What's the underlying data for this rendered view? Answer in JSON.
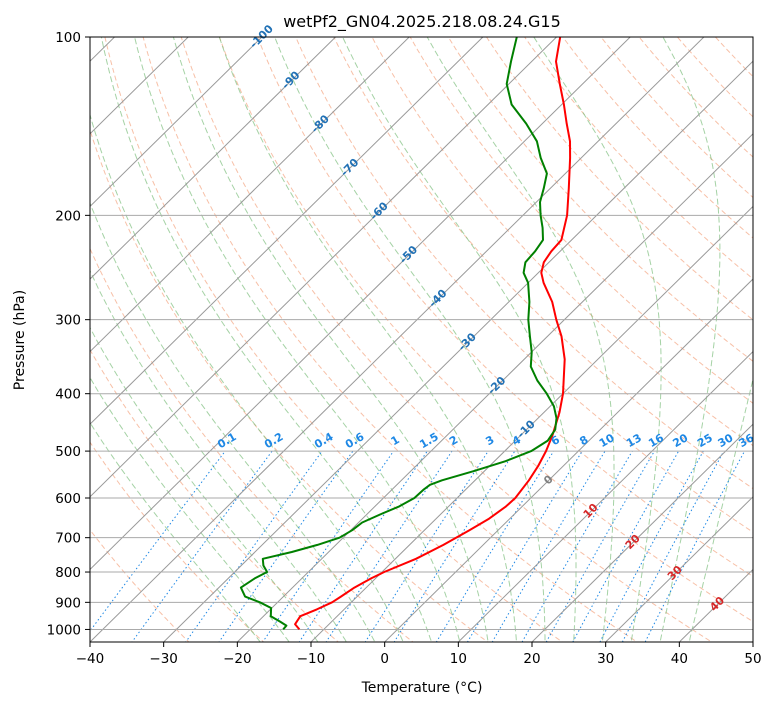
{
  "chart_data": {
    "type": "line",
    "subtype": "skew-T log-p diagram",
    "title": "wetPf2_GN04.2025.218.08.24.G15",
    "xlabel": "Temperature (°C)",
    "ylabel": "Pressure (hPa)",
    "xlim": [
      -40,
      50
    ],
    "ylim": [
      1050,
      100
    ],
    "yscale": "log",
    "grid": true,
    "x_ticks": [
      -40,
      -30,
      -20,
      -10,
      0,
      10,
      20,
      30,
      40,
      50
    ],
    "x_tick_labels": [
      "−40",
      "−30",
      "−20",
      "−10",
      "0",
      "10",
      "20",
      "30",
      "40",
      "50"
    ],
    "y_ticks": [
      1000,
      900,
      800,
      700,
      600,
      500,
      400,
      300,
      200,
      100
    ],
    "y_tick_labels": [
      "1000",
      "900",
      "800",
      "700",
      "600",
      "500",
      "400",
      "300",
      "200",
      "100"
    ],
    "series": [
      {
        "color": "#ff0000",
        "points": [
          [
            1000,
            -13.3
          ],
          [
            980,
            -14.6
          ],
          [
            950,
            -15.0
          ],
          [
            925,
            -13.7
          ],
          [
            900,
            -12.6
          ],
          [
            880,
            -12.2
          ],
          [
            850,
            -11.6
          ],
          [
            820,
            -10.6
          ],
          [
            800,
            -9.7
          ],
          [
            760,
            -7.2
          ],
          [
            720,
            -5.4
          ],
          [
            680,
            -3.9
          ],
          [
            650,
            -2.8
          ],
          [
            620,
            -2.2
          ],
          [
            600,
            -2.1
          ],
          [
            560,
            -2.7
          ],
          [
            530,
            -3.4
          ],
          [
            500,
            -4.4
          ],
          [
            470,
            -5.7
          ],
          [
            430,
            -7.9
          ],
          [
            400,
            -10.0
          ],
          [
            350,
            -14.5
          ],
          [
            320,
            -18.1
          ],
          [
            300,
            -21.1
          ],
          [
            280,
            -24.1
          ],
          [
            260,
            -27.9
          ],
          [
            250,
            -29.6
          ],
          [
            240,
            -30.7
          ],
          [
            230,
            -31.2
          ],
          [
            220,
            -31.4
          ],
          [
            200,
            -34.0
          ],
          [
            180,
            -37.5
          ],
          [
            160,
            -41.5
          ],
          [
            150,
            -43.8
          ],
          [
            140,
            -46.7
          ],
          [
            130,
            -49.7
          ],
          [
            120,
            -53.1
          ],
          [
            110,
            -56.7
          ],
          [
            100,
            -59.5
          ]
        ]
      },
      {
        "color": "#008000",
        "points": [
          [
            1000,
            -15.5
          ],
          [
            985,
            -15.6
          ],
          [
            970,
            -17.0
          ],
          [
            950,
            -19.0
          ],
          [
            920,
            -20.1
          ],
          [
            900,
            -22.4
          ],
          [
            880,
            -25.2
          ],
          [
            850,
            -27.0
          ],
          [
            820,
            -26.4
          ],
          [
            800,
            -25.6
          ],
          [
            780,
            -27.0
          ],
          [
            760,
            -28.0
          ],
          [
            740,
            -25.0
          ],
          [
            720,
            -22.5
          ],
          [
            700,
            -20.5
          ],
          [
            680,
            -19.8
          ],
          [
            660,
            -19.5
          ],
          [
            640,
            -18.2
          ],
          [
            620,
            -16.7
          ],
          [
            600,
            -15.8
          ],
          [
            580,
            -15.7
          ],
          [
            570,
            -15.5
          ],
          [
            560,
            -14.5
          ],
          [
            540,
            -11.4
          ],
          [
            520,
            -8.5
          ],
          [
            500,
            -6.4
          ],
          [
            480,
            -5.6
          ],
          [
            460,
            -6.1
          ],
          [
            440,
            -7.5
          ],
          [
            420,
            -9.5
          ],
          [
            400,
            -12.2
          ],
          [
            380,
            -15.3
          ],
          [
            360,
            -18.1
          ],
          [
            340,
            -20.0
          ],
          [
            320,
            -22.4
          ],
          [
            300,
            -24.9
          ],
          [
            280,
            -27.2
          ],
          [
            260,
            -30.0
          ],
          [
            250,
            -32.0
          ],
          [
            240,
            -33.2
          ],
          [
            230,
            -33.4
          ],
          [
            220,
            -33.9
          ],
          [
            210,
            -35.6
          ],
          [
            200,
            -37.6
          ],
          [
            190,
            -39.5
          ],
          [
            180,
            -40.9
          ],
          [
            170,
            -42.5
          ],
          [
            160,
            -45.5
          ],
          [
            150,
            -48.3
          ],
          [
            140,
            -52.2
          ],
          [
            130,
            -56.8
          ],
          [
            120,
            -60.3
          ],
          [
            110,
            -62.8
          ],
          [
            100,
            -65.4
          ]
        ]
      }
    ],
    "isotherm_labels": [
      "-100",
      "-90",
      "-80",
      "-70",
      "-60",
      "-50",
      "-40",
      "-30",
      "-20",
      "-10",
      "0",
      "10",
      "20",
      "30",
      "40"
    ],
    "mixing_ratio_labels": [
      "0.1",
      "0.2",
      "0.4",
      "0.6",
      "1",
      "1.5",
      "2",
      "3",
      "4",
      "6",
      "8",
      "10",
      "13",
      "16",
      "20",
      "25",
      "30",
      "36"
    ],
    "background_colors": {
      "dry_adiabat": "#f4a582",
      "moist_adiabat": "#7fbf7f",
      "mixing_ratio": "#1e88e5",
      "isotherm": "#999999",
      "isotherm_label_cold": "#2171b5",
      "isotherm_label_warm": "#d62728",
      "isotherm_label_zero": "#808080"
    }
  }
}
